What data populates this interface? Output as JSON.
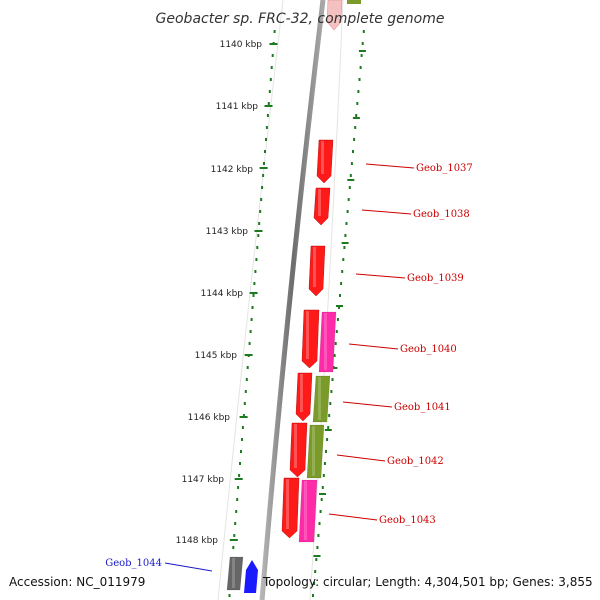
{
  "title": "Geobacter sp. FRC-32, complete genome",
  "accession": "Accession: NC_011979",
  "summary": "Topology: circular; Length: 4,304,501 bp; Genes: 3,855",
  "colors": {
    "backbone": "#8a8a8a",
    "tick": "#1e7a1e",
    "red_gene": "#ff1a1a",
    "pink_gene": "#ff2aa8",
    "olive_gene": "#7a9a2a",
    "gray_gene": "#666666",
    "blue_gene": "#1a1aff",
    "red_label": "#cc0000",
    "blue_label": "#1a1acc"
  },
  "scale_labels": [
    "1140 kbp",
    "1141 kbp",
    "1142 kbp",
    "1143 kbp",
    "1144 kbp",
    "1145 kbp",
    "1146 kbp",
    "1147 kbp",
    "1148 kbp"
  ],
  "genes": [
    {
      "name": "Geob_1037",
      "color": "red"
    },
    {
      "name": "Geob_1038",
      "color": "red"
    },
    {
      "name": "Geob_1039",
      "color": "red"
    },
    {
      "name": "Geob_1040",
      "color": "red"
    },
    {
      "name": "Geob_1041",
      "color": "red"
    },
    {
      "name": "Geob_1042",
      "color": "red"
    },
    {
      "name": "Geob_1043",
      "color": "red"
    },
    {
      "name": "Geob_1044",
      "color": "blue"
    }
  ]
}
